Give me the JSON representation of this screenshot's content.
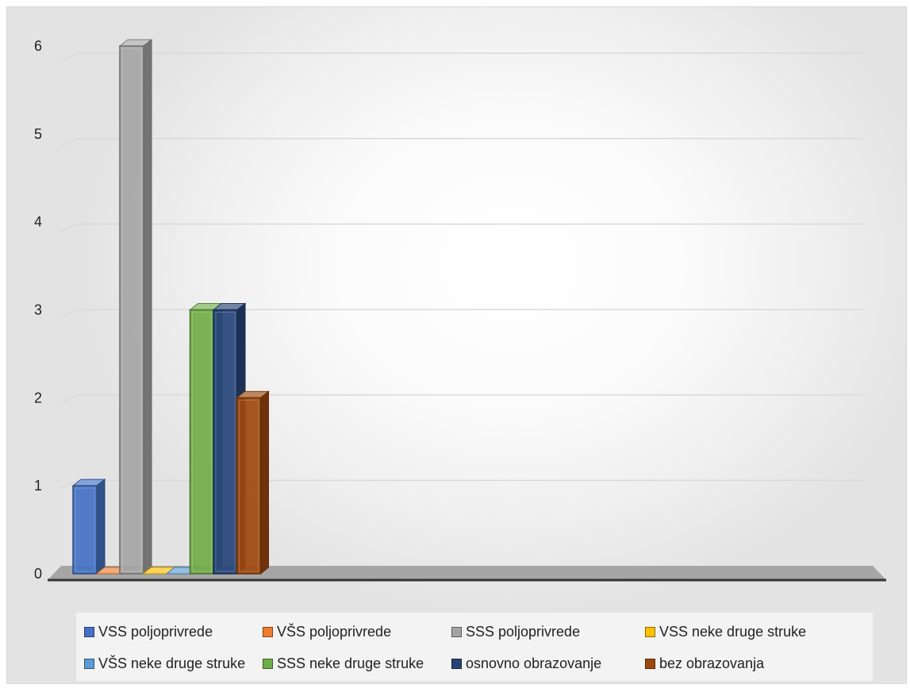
{
  "chart_data": {
    "type": "bar",
    "title": "",
    "xlabel": "",
    "ylabel": "",
    "ylim": [
      0,
      6
    ],
    "yticks": [
      "0",
      "1",
      "2",
      "3",
      "4",
      "5",
      "6"
    ],
    "grid": true,
    "style": "3d-clustered-column",
    "legend_position": "bottom",
    "series": [
      {
        "name": "VSS poljoprivrede",
        "value": 1,
        "color": "#4472C4"
      },
      {
        "name": "VŠS poljoprivrede",
        "value": 0,
        "color": "#ED7D31"
      },
      {
        "name": "SSS poljoprivrede",
        "value": 6,
        "color": "#A5A5A5"
      },
      {
        "name": "VSS neke druge struke",
        "value": 0,
        "color": "#FFC000"
      },
      {
        "name": "VŠS neke druge struke",
        "value": 0,
        "color": "#5B9BD5"
      },
      {
        "name": "SSS neke druge struke",
        "value": 3,
        "color": "#70AD47"
      },
      {
        "name": "osnovno obrazovanje",
        "value": 3,
        "color": "#264478"
      },
      {
        "name": "bez obrazovanja",
        "value": 2,
        "color": "#9E480E"
      }
    ]
  }
}
